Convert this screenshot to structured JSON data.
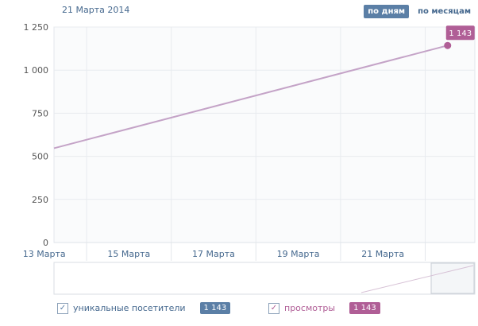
{
  "header": {
    "date": "21 Марта 2014"
  },
  "tabs": [
    {
      "label": "по дням",
      "active": true
    },
    {
      "label": "по месяцам",
      "active": false
    }
  ],
  "legend": [
    {
      "label": "уникальные посетители",
      "value": "1 143",
      "checked": true,
      "color": "#5b7fa6"
    },
    {
      "label": "просмотры",
      "value": "1 143",
      "checked": true,
      "color": "#b05e96"
    }
  ],
  "chart_data": {
    "type": "line",
    "title": "",
    "xlabel": "",
    "ylabel": "",
    "ylim": [
      0,
      1250
    ],
    "yticks": [
      "0",
      "250",
      "500",
      "750",
      "1 000",
      "1 250"
    ],
    "ytick_values": [
      0,
      250,
      500,
      750,
      1000,
      1250
    ],
    "xticks": [
      "13 Марта",
      "15 Марта",
      "17 Марта",
      "19 Марта",
      "21 Марта"
    ],
    "xtick_days": [
      13,
      15,
      17,
      19,
      21
    ],
    "xlim_days": [
      12.23,
      22.21
    ],
    "grid": true,
    "series": [
      {
        "color": "#c4a3c7",
        "points": [
          {
            "x": "12 Марта",
            "day": 12.23,
            "y": 547
          },
          {
            "x": "21 Марта",
            "day": 21.53,
            "y": 1143
          }
        ],
        "end_label": "1 143",
        "end_label_color": "#b05e96"
      }
    ]
  }
}
